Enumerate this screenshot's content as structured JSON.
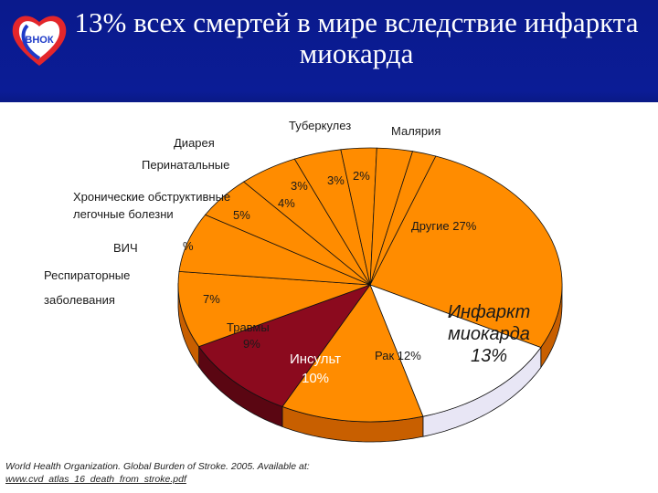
{
  "slide": {
    "title": "13% всех смертей в мире вследствие инфаркта миокарда",
    "logo_text": "ВНОК",
    "source_text": "World Health Organization. Global Burden of Stroke. 2005. Available at:",
    "source_link": "www.cvd_atlas_16_death_from_stroke.pdf"
  },
  "colors": {
    "header_bg": "#0b1c96",
    "slice": "#ff8c00",
    "slice_side": "#c85f00",
    "stroke_slice": "#8b0a1e",
    "mi_slice": "#ffffff",
    "mi_side": "#e8e6f5",
    "outline": "#111111"
  },
  "chart_data": {
    "type": "pie",
    "title": "",
    "unit": "%",
    "slices": [
      {
        "label": "Другие",
        "value": 27,
        "value_text": "27%"
      },
      {
        "label": "Инфаркт миокарда",
        "value": 13,
        "value_text": "13%"
      },
      {
        "label": "Рак",
        "value": 12,
        "value_text": "12%"
      },
      {
        "label": "Инсульт",
        "value": 10,
        "value_text": "10%"
      },
      {
        "label": "Травмы",
        "value": 9,
        "value_text": "9%"
      },
      {
        "label": "Респираторные заболевания",
        "value": 7,
        "value_text": "7%"
      },
      {
        "label": "ВИЧ",
        "value": 5,
        "value_text": "%"
      },
      {
        "label": "Хронические обструктивные легочные болезни",
        "value": 5,
        "value_text": "5%"
      },
      {
        "label": "Перинатальные",
        "value": 4,
        "value_text": "4%"
      },
      {
        "label": "Диарея",
        "value": 3,
        "value_text": "3%"
      },
      {
        "label": "Туберкулез",
        "value": 3,
        "value_text": "3%"
      },
      {
        "label": "Малярия",
        "value": 2,
        "value_text": "2%"
      }
    ]
  }
}
